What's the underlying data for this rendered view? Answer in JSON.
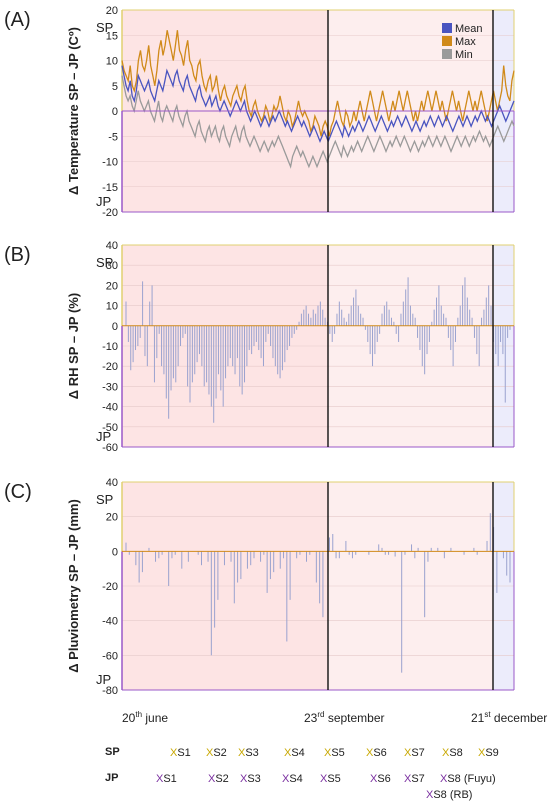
{
  "panels": [
    {
      "letter": "(A)",
      "ylabel": "Δ Temperature SP – JP (Cº)",
      "ylim": [
        -20,
        20
      ],
      "ticks": [
        "20",
        "15",
        "10",
        "5",
        "0",
        "-5",
        "-10",
        "-15",
        "-20"
      ],
      "sp_label": "SP",
      "jp_label": "JP"
    },
    {
      "letter": "(B)",
      "ylabel": "Δ RH SP – JP (%)",
      "ylim": [
        -60,
        40
      ],
      "ticks": [
        "40",
        "30",
        "20",
        "10",
        "0",
        "-10",
        "-20",
        "-30",
        "-40",
        "-50",
        "-60"
      ],
      "sp_label": "SP",
      "jp_label": "JP"
    },
    {
      "letter": "(C)",
      "ylabel": "Δ Pluviometry SP – JP (mm)",
      "ylim": [
        -80,
        40
      ],
      "ticks": [
        "40",
        "20",
        "0",
        "-20",
        "-40",
        "-60",
        "-80"
      ],
      "sp_label": "SP",
      "jp_label": "JP"
    }
  ],
  "x_axis": {
    "labels": [
      {
        "day": "20",
        "sup": "th",
        "rest": " june"
      },
      {
        "day": "23",
        "sup": "rd",
        "rest": " september"
      },
      {
        "day": "21",
        "sup": "st",
        "rest": " december"
      }
    ]
  },
  "legend": [
    "Mean",
    "Max",
    "Min"
  ],
  "colors": {
    "mean": "#4a55c0",
    "max": "#d08a1a",
    "min": "#9a9a9a",
    "bar": "#9aa2cf",
    "summer": "#fde4e4",
    "autumn": "#fdeeee",
    "winter": "#ececfb",
    "sp_axis": "#e0d070",
    "jp_axis": "#9a58c8"
  },
  "sessions": {
    "sp_label": "SP",
    "jp_label": "JP",
    "mark": "X",
    "sp": [
      "S1",
      "S2",
      "S3",
      "S4",
      "S5",
      "S6",
      "S7",
      "S8",
      "S9"
    ],
    "jp": [
      "S1",
      "S2",
      "S3",
      "S4",
      "S5",
      "S6",
      "S7",
      "S8 (Fuyu)",
      "S8 (RB)"
    ]
  },
  "chart_data": [
    {
      "type": "line",
      "ylabel": "Δ Temperature SP – JP (Cº)",
      "ylim": [
        -20,
        20
      ],
      "x_start": "20 june",
      "x_end": "30 december",
      "markers": [
        "23 september",
        "21 december"
      ],
      "series": [
        {
          "name": "Mean",
          "values": [
            9,
            7,
            5,
            4,
            6,
            3,
            2,
            4,
            7,
            6,
            5,
            4,
            5,
            6,
            4,
            3,
            2,
            4,
            6,
            5,
            4,
            6,
            8,
            7,
            6,
            5,
            7,
            8,
            6,
            5,
            4,
            6,
            7,
            5,
            4,
            3,
            2,
            4,
            5,
            3,
            2,
            1,
            2,
            3,
            1,
            2,
            3,
            1,
            0,
            1,
            2,
            1,
            0,
            -1,
            0,
            1,
            2,
            1,
            0,
            1,
            2,
            0,
            -1,
            -2,
            -1,
            0,
            -1,
            -2,
            -3,
            -2,
            -1,
            -2,
            -3,
            -2,
            -1,
            -2,
            -1,
            0,
            -1,
            -2,
            -3,
            -2,
            -3,
            -4,
            -3,
            -2,
            -1,
            -2,
            -3,
            -2,
            -3,
            -4,
            -5,
            -4,
            -3,
            -4,
            -5,
            -6,
            -5,
            -4,
            -5,
            -6,
            -5,
            -4,
            -3,
            -2,
            -3,
            -4,
            -5,
            -3,
            -4,
            -5,
            -4,
            -3,
            -4,
            -3,
            -2,
            -3,
            -4,
            -3,
            -2,
            -1,
            -2,
            -3,
            -4,
            -3,
            -2,
            -1,
            -2,
            -3,
            -4,
            -3,
            -2,
            -3,
            -2,
            -1,
            -2,
            -3,
            -2,
            -1,
            -2,
            -3,
            -4,
            -3,
            -2,
            -3,
            -4,
            -3,
            -2,
            -3,
            -2,
            -1,
            -2,
            -3,
            -2,
            -1,
            -2,
            -3,
            -2,
            -1,
            -2,
            -3,
            -4,
            -3,
            -2,
            -1,
            -2,
            -3,
            -2,
            -1,
            -2,
            -3,
            -2,
            -1,
            -2,
            -1,
            0,
            -1,
            -2,
            -1,
            -2,
            -3,
            -2,
            -1,
            0,
            1,
            0,
            -1,
            -2,
            -1,
            0,
            1,
            2
          ]
        },
        {
          "name": "Max",
          "values": [
            10,
            8,
            7,
            6,
            9,
            5,
            4,
            6,
            10,
            12,
            9,
            8,
            10,
            13,
            9,
            7,
            5,
            8,
            12,
            14,
            11,
            13,
            16,
            14,
            12,
            10,
            13,
            16,
            12,
            11,
            9,
            12,
            14,
            10,
            9,
            7,
            6,
            9,
            10,
            7,
            5,
            4,
            6,
            7,
            4,
            5,
            7,
            4,
            2,
            4,
            5,
            3,
            2,
            1,
            3,
            4,
            5,
            3,
            2,
            4,
            5,
            2,
            0,
            -1,
            1,
            2,
            0,
            -1,
            -2,
            -1,
            1,
            0,
            -2,
            -1,
            1,
            0,
            1,
            3,
            1,
            -1,
            -2,
            0,
            -1,
            -3,
            -2,
            0,
            2,
            0,
            -1,
            0,
            -1,
            -2,
            -4,
            -3,
            -1,
            -2,
            -3,
            -5,
            -3,
            -2,
            -3,
            -5,
            -3,
            -2,
            0,
            2,
            0,
            -2,
            -3,
            0,
            -1,
            -3,
            -2,
            0,
            -2,
            0,
            2,
            0,
            -2,
            0,
            2,
            4,
            2,
            0,
            -2,
            0,
            2,
            4,
            2,
            0,
            -2,
            0,
            2,
            0,
            2,
            4,
            2,
            0,
            2,
            4,
            2,
            0,
            -2,
            0,
            -2,
            0,
            2,
            0,
            2,
            4,
            2,
            0,
            2,
            4,
            2,
            0,
            2,
            0,
            -2,
            0,
            2,
            4,
            2,
            0,
            2,
            0,
            -2,
            0,
            2,
            4,
            2,
            0,
            2,
            0,
            2,
            4,
            2,
            0,
            -2,
            0,
            2,
            4,
            2,
            0,
            2,
            4,
            9,
            5,
            3,
            2,
            6,
            8
          ]
        },
        {
          "name": "Min",
          "values": [
            7,
            5,
            3,
            2,
            3,
            1,
            0,
            2,
            4,
            2,
            1,
            0,
            1,
            2,
            0,
            -1,
            -2,
            0,
            2,
            -1,
            -2,
            0,
            1,
            0,
            -1,
            -2,
            0,
            1,
            -1,
            -2,
            -3,
            -1,
            0,
            -2,
            -3,
            -4,
            -5,
            -3,
            -2,
            -4,
            -5,
            -6,
            -4,
            -3,
            -5,
            -4,
            -3,
            -5,
            -6,
            -4,
            -3,
            -5,
            -6,
            -7,
            -5,
            -4,
            -3,
            -5,
            -6,
            -4,
            -3,
            -5,
            -6,
            -7,
            -6,
            -5,
            -6,
            -7,
            -8,
            -7,
            -6,
            -7,
            -8,
            -7,
            -6,
            -7,
            -6,
            -5,
            -6,
            -7,
            -8,
            -9,
            -10,
            -11,
            -9,
            -8,
            -7,
            -8,
            -9,
            -8,
            -9,
            -10,
            -11,
            -10,
            -9,
            -10,
            -11,
            -10,
            -9,
            -8,
            -9,
            -10,
            -9,
            -8,
            -7,
            -6,
            -7,
            -8,
            -9,
            -7,
            -8,
            -9,
            -8,
            -7,
            -8,
            -7,
            -6,
            -7,
            -8,
            -7,
            -6,
            -5,
            -6,
            -7,
            -8,
            -7,
            -6,
            -5,
            -6,
            -7,
            -8,
            -7,
            -6,
            -7,
            -6,
            -5,
            -6,
            -7,
            -6,
            -5,
            -6,
            -7,
            -8,
            -7,
            -6,
            -7,
            -8,
            -7,
            -6,
            -7,
            -6,
            -5,
            -6,
            -7,
            -6,
            -5,
            -6,
            -7,
            -6,
            -5,
            -6,
            -7,
            -8,
            -7,
            -6,
            -5,
            -6,
            -7,
            -6,
            -5,
            -6,
            -7,
            -6,
            -5,
            -6,
            -5,
            -4,
            -5,
            -6,
            -5,
            -6,
            -7,
            -6,
            -5,
            -4,
            -3,
            -4,
            -5,
            -6,
            -5,
            -4,
            -3,
            -2,
            -3
          ]
        }
      ]
    },
    {
      "type": "bar",
      "ylabel": "Δ RH SP – JP (%)",
      "ylim": [
        -60,
        40
      ],
      "series": [
        {
          "values": [
            12,
            -8,
            -22,
            -18,
            -12,
            -10,
            -6,
            22,
            -15,
            -20,
            12,
            20,
            -28,
            -16,
            -4,
            -20,
            -24,
            -36,
            -46,
            -32,
            -26,
            -28,
            -20,
            -10,
            -6,
            -4,
            -30,
            -38,
            -28,
            -24,
            -18,
            -14,
            -20,
            -30,
            -28,
            -34,
            -40,
            -48,
            -36,
            -24,
            -32,
            -40,
            -26,
            -20,
            -16,
            -20,
            -24,
            -16,
            -30,
            -34,
            -28,
            -20,
            -12,
            -14,
            -10,
            -8,
            -12,
            -16,
            -20,
            -8,
            -4,
            -10,
            -16,
            -20,
            -24,
            -26,
            -22,
            -18,
            -12,
            -10,
            -6,
            -4,
            -2,
            2,
            6,
            8,
            10,
            6,
            4,
            8,
            6,
            10,
            12,
            8,
            4,
            2,
            -4,
            -8,
            -4,
            6,
            12,
            8,
            4,
            2,
            6,
            10,
            14,
            18,
            10,
            6,
            4,
            -2,
            -8,
            -14,
            -20,
            -14,
            -8,
            -4,
            6,
            10,
            12,
            8,
            4,
            2,
            -4,
            -8,
            6,
            12,
            18,
            24,
            10,
            6,
            4,
            -6,
            -12,
            -20,
            -24,
            -14,
            -8,
            2,
            8,
            14,
            20,
            10,
            6,
            4,
            -6,
            -12,
            -20,
            -8,
            4,
            10,
            20,
            24,
            14,
            8,
            4,
            -6,
            -14,
            -20,
            4,
            8,
            14,
            20,
            10,
            -8,
            -14,
            -20,
            -8,
            -14,
            -38,
            -6,
            -2
          ]
        }
      ]
    },
    {
      "type": "bar",
      "ylabel": "Δ Pluviometry SP – JP (mm)",
      "ylim": [
        -80,
        40
      ],
      "series": [
        {
          "values": [
            5,
            -2,
            0,
            -8,
            -18,
            -12,
            0,
            2,
            0,
            -6,
            -4,
            -2,
            0,
            -20,
            -4,
            -2,
            0,
            -10,
            0,
            -6,
            0,
            0,
            -2,
            -8,
            0,
            -6,
            -60,
            -44,
            -28,
            0,
            -8,
            0,
            -6,
            -30,
            -18,
            -16,
            0,
            -10,
            -8,
            -4,
            0,
            -6,
            -2,
            -24,
            -16,
            -12,
            0,
            -10,
            -4,
            -52,
            -28,
            0,
            -4,
            -2,
            0,
            -6,
            -2,
            0,
            -18,
            -30,
            -38,
            0,
            8,
            10,
            -4,
            -4,
            0,
            6,
            -2,
            -4,
            -2,
            0,
            0,
            0,
            -2,
            0,
            0,
            4,
            2,
            -2,
            -2,
            0,
            -3,
            0,
            -70,
            -2,
            0,
            4,
            -4,
            2,
            0,
            -38,
            -6,
            2,
            0,
            2,
            0,
            -4,
            0,
            2,
            0,
            0,
            0,
            -2,
            0,
            0,
            2,
            -2,
            0,
            0,
            6,
            22,
            14,
            -24,
            0,
            -4,
            -14,
            -18
          ]
        }
      ]
    }
  ]
}
